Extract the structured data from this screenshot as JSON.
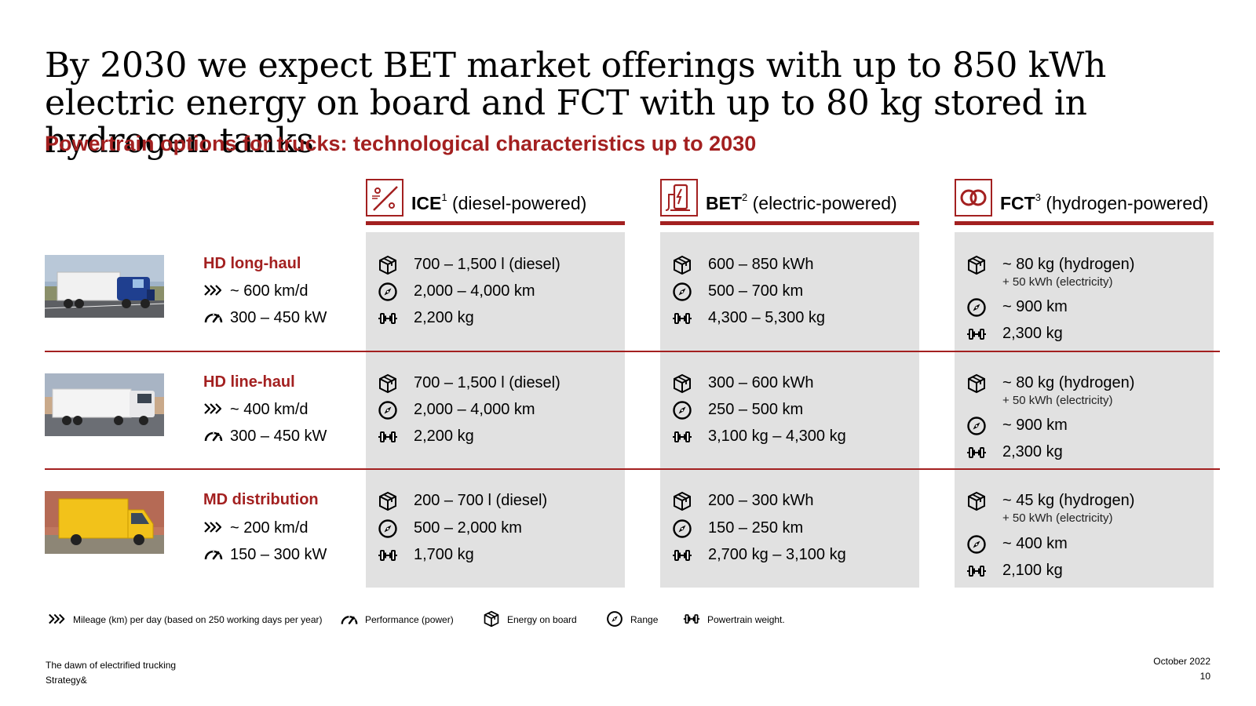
{
  "title": "By 2030 we expect BET market offerings with up to 850 kWh electric energy on board and FCT with up to 80 kg stored in hydrogen tanks",
  "subtitle": "Powertrain options for trucks: technological characteristics up to 2030",
  "columns": [
    {
      "abbr": "ICE",
      "sup": "1",
      "desc": "(diesel-powered)",
      "icon": "percent-piston-icon"
    },
    {
      "abbr": "BET",
      "sup": "2",
      "desc": "(electric-powered)",
      "icon": "charging-station-icon"
    },
    {
      "abbr": "FCT",
      "sup": "3",
      "desc": "(hydrogen-powered)",
      "icon": "hydrogen-rings-icon"
    }
  ],
  "segments": [
    {
      "name": "HD long-haul",
      "mileage": "~ 600 km/d",
      "power": "300 – 450 kW",
      "ice": {
        "energy": "700 – 1,500 l (diesel)",
        "range": "2,000 – 4,000 km",
        "weight": "2,200 kg"
      },
      "bet": {
        "energy": "600 – 850 kWh",
        "range": "500 – 700 km",
        "weight": "4,300 – 5,300 kg"
      },
      "fct": {
        "energy": "~ 80 kg (hydrogen)",
        "extra": "+ 50 kWh (electricity)",
        "range": "~ 900 km",
        "weight": "2,300 kg"
      }
    },
    {
      "name": "HD line-haul",
      "mileage": "~ 400 km/d",
      "power": "300 – 450 kW",
      "ice": {
        "energy": "700 – 1,500 l (diesel)",
        "range": "2,000 – 4,000 km",
        "weight": "2,200 kg"
      },
      "bet": {
        "energy": "300 – 600 kWh",
        "range": "250 – 500 km",
        "weight": "3,100 kg – 4,300 kg"
      },
      "fct": {
        "energy": "~ 80 kg (hydrogen)",
        "extra": "+ 50 kWh (electricity)",
        "range": "~ 900 km",
        "weight": "2,300 kg"
      }
    },
    {
      "name": "MD distribution",
      "mileage": "~ 200 km/d",
      "power": "150 – 300 kW",
      "ice": {
        "energy": "200 – 700 l (diesel)",
        "range": "500 – 2,000 km",
        "weight": "1,700 kg"
      },
      "bet": {
        "energy": "200 – 300 kWh",
        "range": "150 – 250 km",
        "weight": "2,700 kg – 3,100 kg"
      },
      "fct": {
        "energy": "~ 45 kg (hydrogen)",
        "extra": "+ 50 kWh (electricity)",
        "range": "~ 400 km",
        "weight": "2,100 kg"
      }
    }
  ],
  "legend": {
    "mileage": "Mileage (km) per day (based on 250 working days per year)",
    "performance": "Performance (power)",
    "energy": "Energy on board",
    "range": "Range",
    "weight": "Powertrain weight."
  },
  "footer": {
    "doc": "The dawn of electrified trucking",
    "brand": "Strategy&",
    "date": "October 2022",
    "page": "10"
  },
  "colors": {
    "accent": "#a32020",
    "panel": "#e1e1e1"
  }
}
